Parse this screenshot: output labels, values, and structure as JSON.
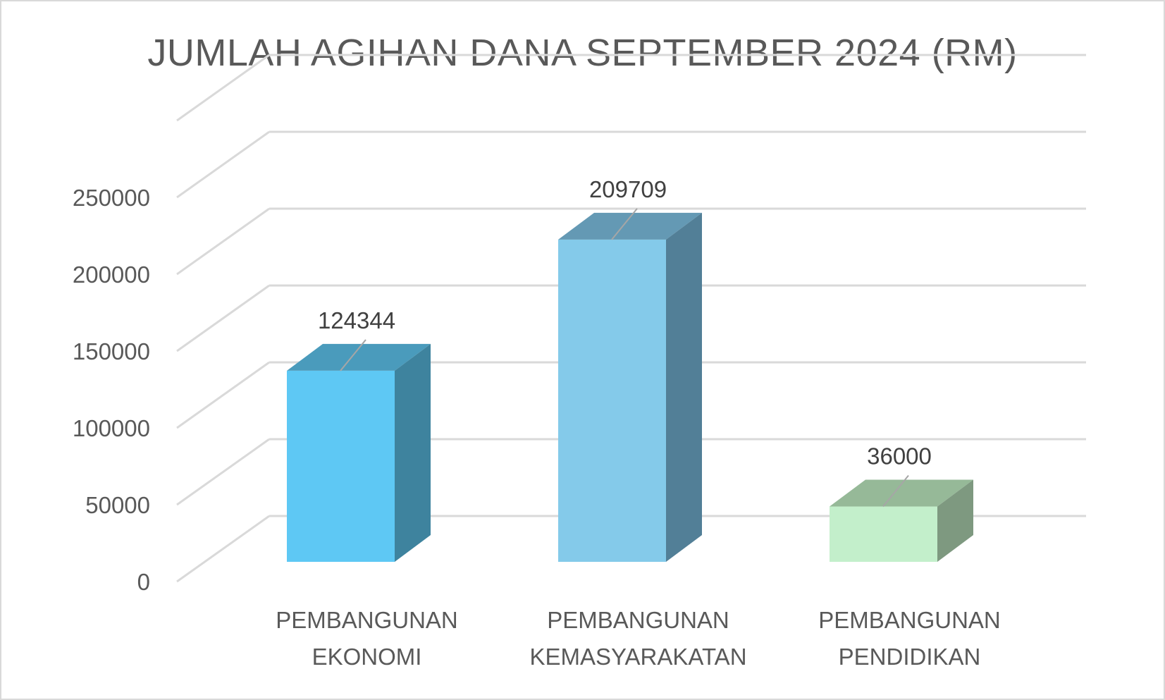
{
  "chart_data": {
    "type": "bar",
    "style": "3d-column",
    "title": "JUMLAH AGIHAN DANA SEPTEMBER 2024 (RM)",
    "categories": [
      [
        "PEMBANGUNAN",
        "EKONOMI"
      ],
      [
        "PEMBANGUNAN",
        "KEMASYARAKATAN"
      ],
      [
        "PEMBANGUNAN",
        "PENDIDIKAN"
      ]
    ],
    "values": [
      124344,
      209709,
      36000
    ],
    "data_labels": [
      "124344",
      "209709",
      "36000"
    ],
    "ylim": [
      0,
      250000
    ],
    "yticks": [
      "0",
      "50000",
      "100000",
      "150000",
      "200000",
      "250000"
    ],
    "grid": true,
    "legend": "none",
    "colors": {
      "bars": [
        {
          "front": "#5EC8F4",
          "top": "#4A9BBC",
          "side": "#3E839E"
        },
        {
          "front": "#84CAEA",
          "top": "#6499B4",
          "side": "#527F97"
        },
        {
          "front": "#C3EFCB",
          "top": "#96B998",
          "side": "#7E9980"
        }
      ],
      "grid": "#d9d9d9",
      "text": "#595959"
    }
  }
}
